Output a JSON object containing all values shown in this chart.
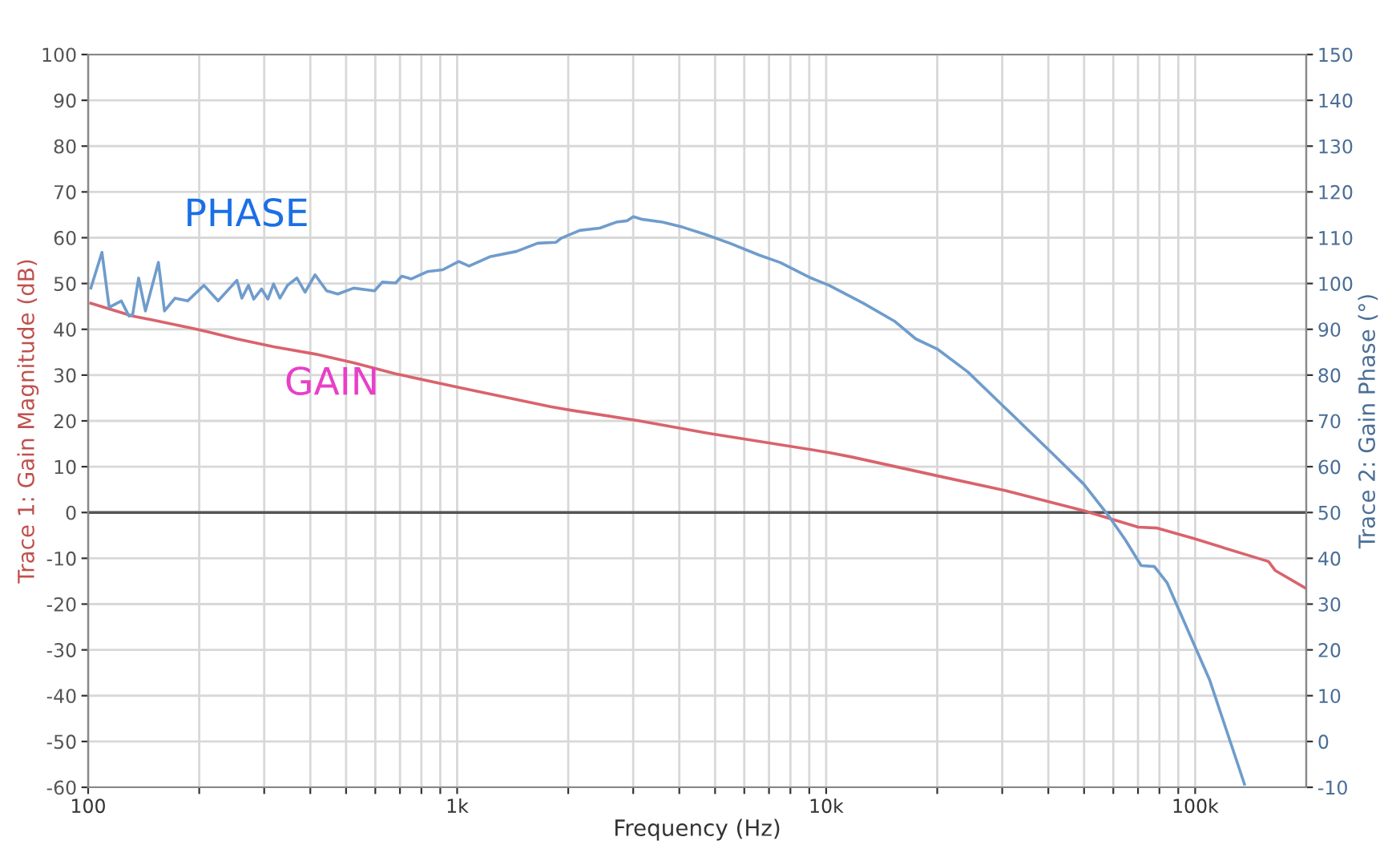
{
  "chart_data": {
    "type": "line",
    "xlabel": "Frequency (Hz)",
    "ylabel": "Trace 1: Gain Magnitude (dB)",
    "y2label": "Trace 2: Gain Phase (°)",
    "log": "x",
    "grid": true,
    "marker": "none",
    "line_style": "solid",
    "xlim": [
      100,
      200000
    ],
    "xticks": [
      {
        "value": 100,
        "label": "100"
      },
      {
        "value": 200,
        "label": null
      },
      {
        "value": 300,
        "label": null
      },
      {
        "value": 400,
        "label": null
      },
      {
        "value": 500,
        "label": null
      },
      {
        "value": 600,
        "label": null
      },
      {
        "value": 700,
        "label": null
      },
      {
        "value": 800,
        "label": null
      },
      {
        "value": 900,
        "label": null
      },
      {
        "value": 1000,
        "label": "1k"
      },
      {
        "value": 2000,
        "label": null
      },
      {
        "value": 3000,
        "label": null
      },
      {
        "value": 4000,
        "label": null
      },
      {
        "value": 5000,
        "label": null
      },
      {
        "value": 6000,
        "label": null
      },
      {
        "value": 7000,
        "label": null
      },
      {
        "value": 8000,
        "label": null
      },
      {
        "value": 9000,
        "label": null
      },
      {
        "value": 10000,
        "label": "10k"
      },
      {
        "value": 20000,
        "label": null
      },
      {
        "value": 30000,
        "label": null
      },
      {
        "value": 40000,
        "label": null
      },
      {
        "value": 50000,
        "label": null
      },
      {
        "value": 60000,
        "label": null
      },
      {
        "value": 70000,
        "label": null
      },
      {
        "value": 80000,
        "label": null
      },
      {
        "value": 90000,
        "label": null
      },
      {
        "value": 100000,
        "label": "100k"
      }
    ],
    "ylim": [
      -60,
      100
    ],
    "yticks": [
      -60,
      -50,
      -40,
      -30,
      -20,
      -10,
      0,
      10,
      20,
      30,
      40,
      50,
      60,
      70,
      80,
      90,
      100
    ],
    "y2lim": [
      -10,
      150
    ],
    "y2ticks": [
      -10,
      0,
      10,
      20,
      30,
      40,
      50,
      60,
      70,
      80,
      90,
      100,
      110,
      120,
      130,
      140,
      150
    ],
    "ref_lines": [
      {
        "axis": "y",
        "value": 0,
        "color": "#555555"
      }
    ],
    "series": [
      {
        "name": "GAIN",
        "color": "#d9636d",
        "x": [
          101.7,
          132,
          150,
          195,
          253,
          318,
          412,
          524,
          681,
          1010,
          1790,
          2046,
          3077,
          4800,
          10180,
          11760,
          20300,
          30500,
          49900,
          70100,
          78900,
          99300,
          158000,
          165000,
          200000
        ],
        "values": [
          45.7,
          42.9,
          42,
          40.1,
          37.9,
          36.2,
          34.6,
          32.7,
          30.3,
          27.3,
          23.1,
          22.3,
          20.1,
          17.3,
          13.1,
          12.1,
          7.9,
          4.8,
          0.4,
          -3.2,
          -3.4,
          -5.7,
          -10.7,
          -12.7,
          -16.6
        ]
      },
      {
        "name": "PHASE",
        "color": "#6f9ccc",
        "axis": "y2",
        "x": [
          101.7,
          109,
          114,
          123,
          129,
          132,
          137,
          143,
          155,
          161,
          172,
          186,
          206,
          225,
          253,
          261,
          272,
          281,
          295,
          307,
          318,
          331,
          347,
          368,
          387,
          412,
          443,
          475,
          524,
          597,
          627,
          681,
          708,
          751,
          830,
          914,
          1010,
          1077,
          1232,
          1447,
          1652,
          1854,
          1914,
          2150,
          2436,
          2700,
          2890,
          3003,
          3178,
          3598,
          4084,
          4710,
          5480,
          6590,
          7500,
          9100,
          10180,
          12600,
          15300,
          17500,
          20000,
          24200,
          30500,
          39700,
          49900,
          58600,
          64700,
          71400,
          77500,
          84000,
          99300,
          109500,
          136000
        ],
        "values": [
          99,
          106.8,
          94.8,
          96.2,
          92.9,
          93.2,
          101.2,
          94,
          104.6,
          94,
          96.8,
          96.2,
          99.6,
          96.2,
          100.7,
          96.8,
          99.6,
          96.6,
          98.8,
          96.6,
          99.9,
          96.8,
          99.6,
          101.2,
          98.1,
          101.9,
          98.4,
          97.7,
          99,
          98.4,
          100.3,
          100.1,
          101.6,
          101,
          102.6,
          103,
          104.8,
          103.8,
          105.9,
          107,
          108.8,
          109,
          109.9,
          111.6,
          112.1,
          113.4,
          113.7,
          114.6,
          114,
          113.4,
          112.3,
          110.7,
          108.8,
          106.2,
          104.6,
          101.2,
          99.6,
          95.7,
          91.8,
          87.9,
          85.7,
          80.7,
          72.9,
          64,
          56.2,
          49,
          44,
          38.4,
          38.2,
          34.6,
          21.2,
          13.4,
          -9.3
        ]
      }
    ]
  }
}
